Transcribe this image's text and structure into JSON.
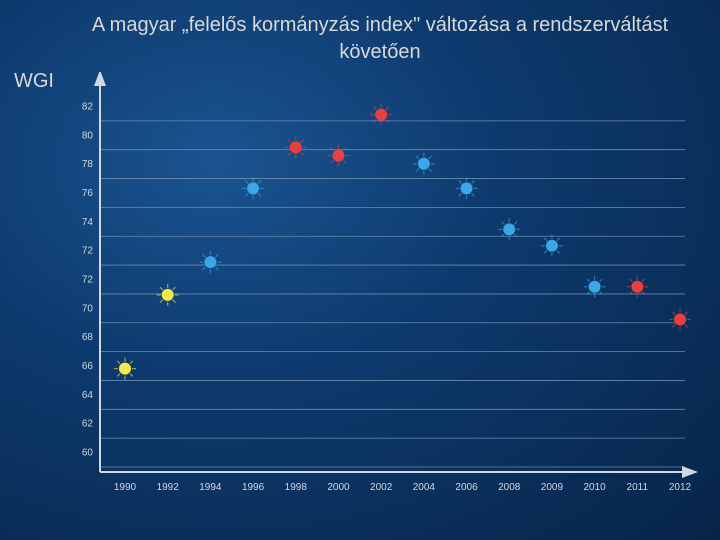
{
  "title": "A magyar „felelős kormányzás index\" változása a rendszerváltást követően",
  "y_axis_label": "WGI",
  "chart": {
    "type": "scatter",
    "background_gradient": {
      "inner": "#1a5490",
      "mid": "#0d3a6e",
      "outer": "#072448"
    },
    "axis_color": "#cfd8e0",
    "grid_color": "#6a8bb0",
    "tick_color": "#d0d7de",
    "tick_fontsize": 10,
    "title_color": "#d8d8d8",
    "title_fontsize": 20,
    "y": {
      "ticks": [
        82,
        80,
        78,
        76,
        74,
        72,
        72,
        70,
        68,
        66,
        64,
        62,
        60
      ],
      "min": 60,
      "max": 82
    },
    "x": {
      "labels": [
        "1990",
        "1992",
        "1994",
        "1996",
        "1998",
        "2000",
        "2002",
        "2004",
        "2006",
        "2008",
        "2009",
        "2010",
        "2011",
        "2012"
      ]
    },
    "marker_radius": 6,
    "glow_radius": 11,
    "colors": {
      "red": "#e83f3f",
      "yellow": "#f5e84a",
      "blue": "#3aa7e6"
    },
    "points": [
      {
        "xi": 0,
        "y": 66,
        "color": "yellow"
      },
      {
        "xi": 1,
        "y": 70.5,
        "color": "yellow"
      },
      {
        "xi": 2,
        "y": 72.5,
        "color": "blue"
      },
      {
        "xi": 3,
        "y": 77,
        "color": "blue"
      },
      {
        "xi": 4,
        "y": 79.5,
        "color": "red"
      },
      {
        "xi": 5,
        "y": 79,
        "color": "red"
      },
      {
        "xi": 6,
        "y": 81.5,
        "color": "red"
      },
      {
        "xi": 7,
        "y": 78.5,
        "color": "blue"
      },
      {
        "xi": 8,
        "y": 77,
        "color": "blue"
      },
      {
        "xi": 9,
        "y": 74.5,
        "color": "blue"
      },
      {
        "xi": 10,
        "y": 73.5,
        "color": "blue"
      },
      {
        "xi": 11,
        "y": 71,
        "color": "blue"
      },
      {
        "xi": 12,
        "y": 71,
        "color": "red"
      },
      {
        "xi": 13,
        "y": 69,
        "color": "red"
      }
    ]
  }
}
